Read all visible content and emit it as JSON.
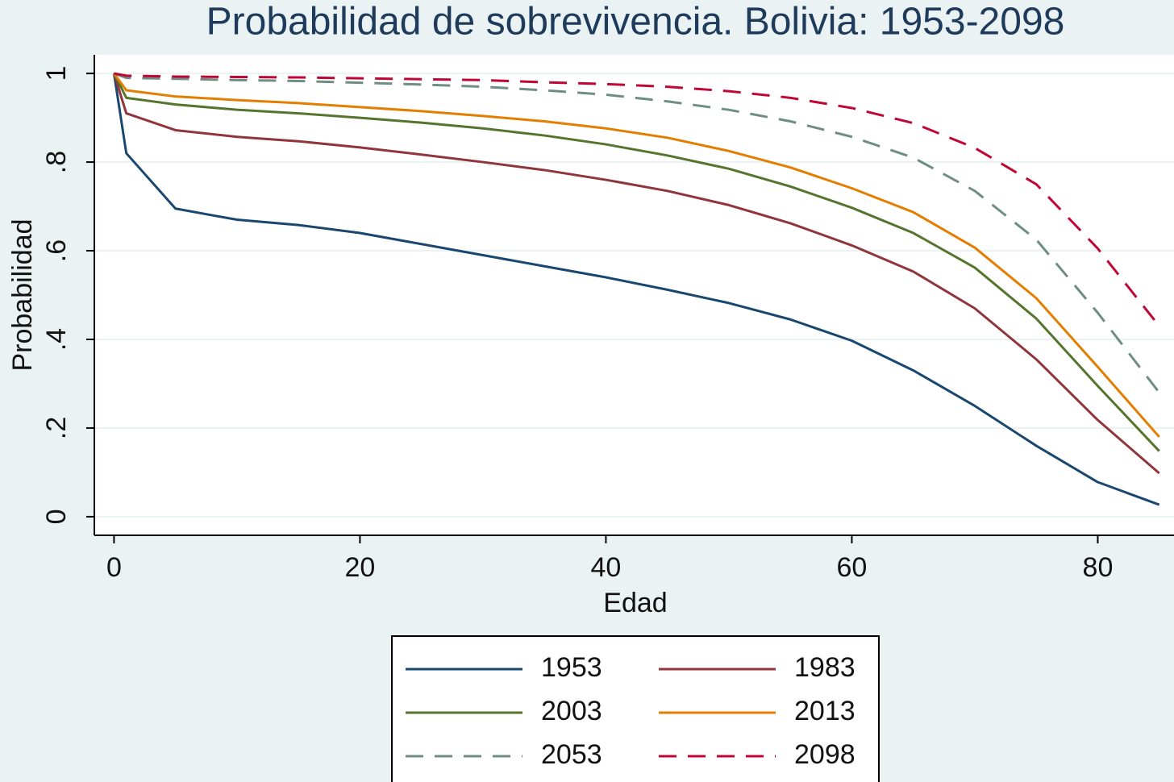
{
  "chart_data": {
    "type": "line",
    "title": "Probabilidad de sobrevivencia. Bolivia: 1953-2098",
    "x_label": "Edad",
    "y_label": "Probabilidad",
    "x": [
      0,
      1,
      5,
      10,
      15,
      20,
      25,
      30,
      35,
      40,
      45,
      50,
      55,
      60,
      65,
      70,
      75,
      80,
      85
    ],
    "series": [
      {
        "name": "1953",
        "color": "#1a476f",
        "dashed": false,
        "values": [
          1,
          0.82,
          0.695,
          0.67,
          0.658,
          0.64,
          0.615,
          0.59,
          0.565,
          0.54,
          0.512,
          0.482,
          0.445,
          0.397,
          0.33,
          0.25,
          0.16,
          0.078,
          0.027
        ]
      },
      {
        "name": "1983",
        "color": "#90353b",
        "dashed": false,
        "values": [
          1,
          0.91,
          0.872,
          0.857,
          0.847,
          0.833,
          0.817,
          0.8,
          0.782,
          0.76,
          0.735,
          0.703,
          0.662,
          0.612,
          0.553,
          0.47,
          0.355,
          0.218,
          0.098
        ]
      },
      {
        "name": "2003",
        "color": "#55752f",
        "dashed": false,
        "values": [
          1,
          0.945,
          0.93,
          0.918,
          0.91,
          0.9,
          0.889,
          0.876,
          0.86,
          0.84,
          0.815,
          0.785,
          0.745,
          0.697,
          0.64,
          0.562,
          0.447,
          0.295,
          0.148
        ]
      },
      {
        "name": "2013",
        "color": "#e37e00",
        "dashed": false,
        "values": [
          1,
          0.962,
          0.948,
          0.94,
          0.933,
          0.924,
          0.915,
          0.904,
          0.892,
          0.876,
          0.855,
          0.825,
          0.788,
          0.741,
          0.687,
          0.607,
          0.493,
          0.338,
          0.18
        ]
      },
      {
        "name": "2053",
        "color": "#6e8e84",
        "dashed": true,
        "values": [
          1,
          0.99,
          0.988,
          0.985,
          0.983,
          0.979,
          0.975,
          0.97,
          0.962,
          0.952,
          0.937,
          0.918,
          0.892,
          0.857,
          0.81,
          0.735,
          0.625,
          0.46,
          0.28
        ]
      },
      {
        "name": "2098",
        "color": "#c10534",
        "dashed": true,
        "values": [
          1,
          0.995,
          0.993,
          0.992,
          0.991,
          0.989,
          0.987,
          0.985,
          0.98,
          0.976,
          0.97,
          0.96,
          0.945,
          0.922,
          0.888,
          0.832,
          0.75,
          0.605,
          0.43
        ]
      }
    ],
    "xlim": [
      -1.6,
      86.2
    ],
    "ylim": [
      -0.042,
      1.042
    ],
    "xticks": [
      0,
      20,
      40,
      60,
      80
    ],
    "yticks": [
      0,
      {
        "value": 0.2,
        "label": ".2"
      },
      {
        "value": 0.4,
        "label": ".4"
      },
      {
        "value": 0.6,
        "label": ".6"
      },
      {
        "value": 0.8,
        "label": ".8"
      },
      1
    ],
    "grid": true
  }
}
